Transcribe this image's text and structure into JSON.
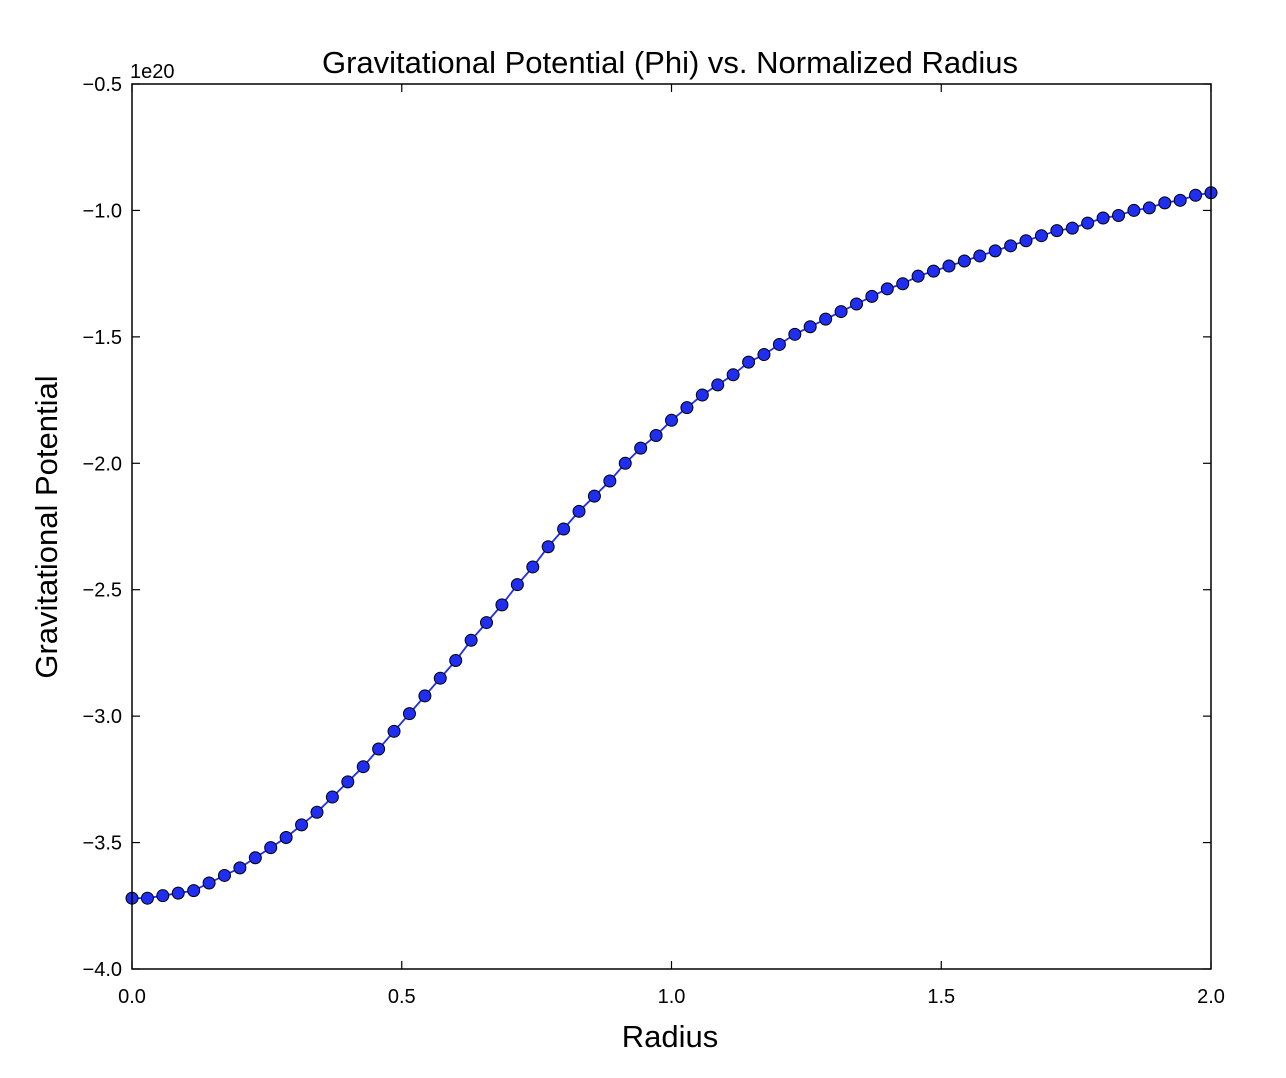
{
  "chart_data": {
    "type": "line",
    "title": "Gravitational Potential (Phi) vs. Normalized Radius",
    "xlabel": "Radius",
    "ylabel": "Gravitational Potential",
    "y_offset_label": "1e20",
    "xlim": [
      0.0,
      2.0
    ],
    "ylim": [
      -4.0,
      -0.5
    ],
    "xticks": [
      0.0,
      0.5,
      1.0,
      1.5,
      2.0
    ],
    "xtick_labels": [
      "0.0",
      "0.5",
      "1.0",
      "1.5",
      "2.0"
    ],
    "yticks": [
      -4.0,
      -3.5,
      -3.0,
      -2.5,
      -2.0,
      -1.5,
      -1.0,
      -0.5
    ],
    "ytick_labels": [
      "−4.0",
      "−3.5",
      "−3.0",
      "−2.5",
      "−2.0",
      "−1.5",
      "−1.0",
      "−0.5"
    ],
    "grid": false,
    "series": [
      {
        "color": "#1f2ef0",
        "marker": "circle",
        "x": [
          0.0,
          0.0286,
          0.0571,
          0.0857,
          0.1143,
          0.1429,
          0.1714,
          0.2,
          0.2286,
          0.2571,
          0.2857,
          0.3143,
          0.3429,
          0.3714,
          0.4,
          0.4286,
          0.4571,
          0.4857,
          0.5143,
          0.5429,
          0.5714,
          0.6,
          0.6286,
          0.6571,
          0.6857,
          0.7143,
          0.7429,
          0.7714,
          0.8,
          0.8286,
          0.8571,
          0.8857,
          0.9143,
          0.9429,
          0.9714,
          1.0,
          1.0286,
          1.0571,
          1.0857,
          1.1143,
          1.1429,
          1.1714,
          1.2,
          1.2286,
          1.2571,
          1.2857,
          1.3143,
          1.3429,
          1.3714,
          1.4,
          1.4286,
          1.4571,
          1.4857,
          1.5143,
          1.5429,
          1.5714,
          1.6,
          1.6286,
          1.6571,
          1.6857,
          1.7143,
          1.7429,
          1.7714,
          1.8,
          1.8286,
          1.8571,
          1.8857,
          1.9143,
          1.9429,
          1.9714,
          2.0
        ],
        "y": [
          -3.72,
          -3.72,
          -3.71,
          -3.7,
          -3.69,
          -3.66,
          -3.63,
          -3.6,
          -3.56,
          -3.52,
          -3.48,
          -3.43,
          -3.38,
          -3.32,
          -3.26,
          -3.2,
          -3.13,
          -3.06,
          -2.99,
          -2.92,
          -2.85,
          -2.78,
          -2.7,
          -2.63,
          -2.56,
          -2.48,
          -2.41,
          -2.33,
          -2.26,
          -2.19,
          -2.13,
          -2.07,
          -2.0,
          -1.94,
          -1.89,
          -1.83,
          -1.78,
          -1.73,
          -1.69,
          -1.65,
          -1.6,
          -1.57,
          -1.53,
          -1.49,
          -1.46,
          -1.43,
          -1.4,
          -1.37,
          -1.34,
          -1.31,
          -1.29,
          -1.26,
          -1.24,
          -1.22,
          -1.2,
          -1.18,
          -1.16,
          -1.14,
          -1.12,
          -1.1,
          -1.08,
          -1.07,
          -1.05,
          -1.03,
          -1.02,
          -1.0,
          -0.99,
          -0.97,
          -0.96,
          -0.94,
          -0.93
        ]
      }
    ]
  }
}
